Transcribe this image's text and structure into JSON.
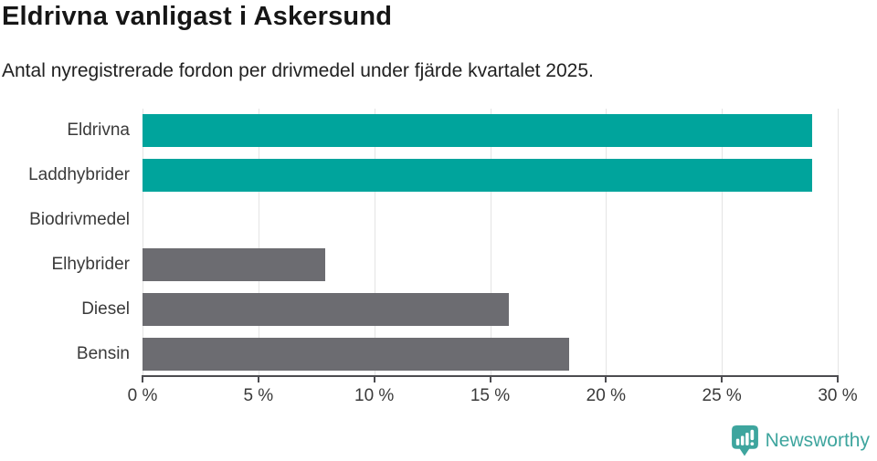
{
  "header": {
    "title": "Eldrivna vanligast i Askersund",
    "subtitle": "Antal nyregistrerade fordon per drivmedel under fjärde kvartalet 2025."
  },
  "chart_data": {
    "type": "bar",
    "orientation": "horizontal",
    "title": "Eldrivna vanligast i Askersund",
    "subtitle": "Antal nyregistrerade fordon per drivmedel under fjärde kvartalet 2025.",
    "categories": [
      "Eldrivna",
      "Laddhybrider",
      "Biodrivmedel",
      "Elhybrider",
      "Diesel",
      "Bensin"
    ],
    "values": [
      28.9,
      28.9,
      0,
      7.9,
      15.8,
      18.4
    ],
    "bar_colors": [
      "#00a49c",
      "#00a49c",
      "#6c6c71",
      "#6c6c71",
      "#6c6c71",
      "#6c6c71"
    ],
    "xlabel": "",
    "ylabel": "",
    "xlim": [
      0,
      30
    ],
    "x_ticks": [
      0,
      5,
      10,
      15,
      20,
      25,
      30
    ],
    "x_tick_labels": [
      "0 %",
      "5 %",
      "10 %",
      "15 %",
      "20 %",
      "25 %",
      "30 %"
    ],
    "grid": "vertical-only",
    "legend": "none"
  },
  "colors": {
    "accent_teal": "#00a49c",
    "neutral_gray": "#6c6c71",
    "gridline": "#e4e4e4",
    "axis": "#4c4c50",
    "brand_teal": "#3ea59e"
  },
  "footer": {
    "brand": "Newsworthy"
  }
}
